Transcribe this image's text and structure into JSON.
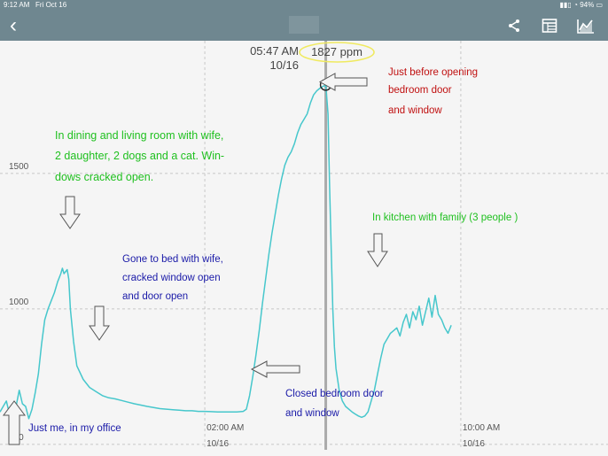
{
  "status_bar": {
    "time": "9:12 AM",
    "date": "Fri Oct 16",
    "battery": "94%"
  },
  "colors": {
    "bar": "#6f8790",
    "line": "#46c7cc",
    "note_green": "#1fc01f",
    "note_blue": "#1a1aa8",
    "note_red": "#c01010",
    "grid": "#c8c8c8",
    "readout_oval": "#f0ea60"
  },
  "nav": {
    "back_icon": "chevron-left-icon",
    "share_icon": "share-icon",
    "table_icon": "table-icon",
    "chart_icon": "line-chart-icon"
  },
  "chart_data": {
    "type": "line",
    "title": "",
    "xlabel": "",
    "ylabel": "",
    "y_ticks": [
      500,
      1000,
      1500
    ],
    "ylim": [
      480,
      1990
    ],
    "x_ticks": [
      {
        "time": "02:00 AM",
        "date": "10/16",
        "hour": 2
      },
      {
        "time": "10:00 AM",
        "date": "10/16",
        "hour": 10
      }
    ],
    "xlim_hours": [
      -4.4,
      14.6
    ],
    "grid": true,
    "cursor": {
      "time": "05:47 AM",
      "date": "10/16",
      "value": "1827 ppm",
      "hour": 5.78,
      "ppm": 1827
    },
    "series": [
      {
        "color": "#46c7cc",
        "points": [
          [
            -4.4,
            620
          ],
          [
            -4.3,
            640
          ],
          [
            -4.2,
            660
          ],
          [
            -4.1,
            610
          ],
          [
            -4.0,
            590
          ],
          [
            -3.9,
            640
          ],
          [
            -3.8,
            700
          ],
          [
            -3.7,
            650
          ],
          [
            -3.6,
            640
          ],
          [
            -3.5,
            595
          ],
          [
            -3.4,
            630
          ],
          [
            -3.3,
            690
          ],
          [
            -3.2,
            760
          ],
          [
            -3.1,
            870
          ],
          [
            -3.0,
            960
          ],
          [
            -2.9,
            1000
          ],
          [
            -2.8,
            1030
          ],
          [
            -2.7,
            1060
          ],
          [
            -2.6,
            1100
          ],
          [
            -2.5,
            1130
          ],
          [
            -2.45,
            1150
          ],
          [
            -2.4,
            1130
          ],
          [
            -2.3,
            1145
          ],
          [
            -2.25,
            1110
          ],
          [
            -2.2,
            1000
          ],
          [
            -2.1,
            880
          ],
          [
            -2.0,
            790
          ],
          [
            -1.8,
            740
          ],
          [
            -1.6,
            710
          ],
          [
            -1.4,
            695
          ],
          [
            -1.2,
            680
          ],
          [
            -1.0,
            672
          ],
          [
            -0.8,
            668
          ],
          [
            -0.6,
            662
          ],
          [
            -0.4,
            656
          ],
          [
            -0.2,
            650
          ],
          [
            0.0,
            645
          ],
          [
            0.2,
            640
          ],
          [
            0.4,
            636
          ],
          [
            0.6,
            632
          ],
          [
            0.8,
            630
          ],
          [
            1.0,
            628
          ],
          [
            1.2,
            626
          ],
          [
            1.4,
            624
          ],
          [
            1.6,
            624
          ],
          [
            1.8,
            622
          ],
          [
            2.0,
            622
          ],
          [
            2.2,
            621
          ],
          [
            2.4,
            620
          ],
          [
            2.6,
            620
          ],
          [
            2.8,
            620
          ],
          [
            3.0,
            620
          ],
          [
            3.2,
            622
          ],
          [
            3.3,
            630
          ],
          [
            3.4,
            680
          ],
          [
            3.5,
            750
          ],
          [
            3.6,
            830
          ],
          [
            3.7,
            920
          ],
          [
            3.8,
            1020
          ],
          [
            3.9,
            1110
          ],
          [
            4.0,
            1200
          ],
          [
            4.1,
            1280
          ],
          [
            4.2,
            1350
          ],
          [
            4.3,
            1420
          ],
          [
            4.4,
            1480
          ],
          [
            4.5,
            1530
          ],
          [
            4.6,
            1560
          ],
          [
            4.7,
            1580
          ],
          [
            4.8,
            1610
          ],
          [
            4.9,
            1650
          ],
          [
            5.0,
            1680
          ],
          [
            5.1,
            1700
          ],
          [
            5.2,
            1720
          ],
          [
            5.3,
            1760
          ],
          [
            5.4,
            1790
          ],
          [
            5.5,
            1805
          ],
          [
            5.6,
            1815
          ],
          [
            5.7,
            1822
          ],
          [
            5.78,
            1827
          ],
          [
            5.85,
            1720
          ],
          [
            5.9,
            1450
          ],
          [
            5.95,
            1220
          ],
          [
            6.0,
            1000
          ],
          [
            6.05,
            860
          ],
          [
            6.1,
            780
          ],
          [
            6.2,
            700
          ],
          [
            6.3,
            660
          ],
          [
            6.4,
            640
          ],
          [
            6.5,
            630
          ],
          [
            6.6,
            620
          ],
          [
            6.7,
            612
          ],
          [
            6.8,
            605
          ],
          [
            6.9,
            600
          ],
          [
            7.0,
            605
          ],
          [
            7.1,
            620
          ],
          [
            7.2,
            660
          ],
          [
            7.3,
            700
          ],
          [
            7.4,
            760
          ],
          [
            7.5,
            820
          ],
          [
            7.6,
            870
          ],
          [
            7.7,
            890
          ],
          [
            7.8,
            910
          ],
          [
            7.9,
            920
          ],
          [
            8.0,
            930
          ],
          [
            8.1,
            900
          ],
          [
            8.2,
            950
          ],
          [
            8.3,
            980
          ],
          [
            8.4,
            930
          ],
          [
            8.5,
            990
          ],
          [
            8.6,
            960
          ],
          [
            8.7,
            1010
          ],
          [
            8.8,
            940
          ],
          [
            8.9,
            990
          ],
          [
            9.0,
            1040
          ],
          [
            9.1,
            970
          ],
          [
            9.2,
            1050
          ],
          [
            9.3,
            980
          ],
          [
            9.4,
            960
          ],
          [
            9.5,
            930
          ],
          [
            9.6,
            910
          ],
          [
            9.7,
            940
          ]
        ]
      }
    ]
  },
  "annotations": {
    "living_room": [
      "In dining and living room with wife,",
      "2 daughter, 2 dogs and a cat. Win-",
      "dows cracked open."
    ],
    "bed": [
      "Gone to bed with wife,",
      "cracked window open",
      "and door open"
    ],
    "office": "Just me, in my office",
    "closed_door": [
      "Closed bedroom door",
      "and window"
    ],
    "before_opening": [
      "Just before opening",
      "bedroom door",
      "and window"
    ],
    "kitchen": "In kitchen with family  (3  people )"
  }
}
